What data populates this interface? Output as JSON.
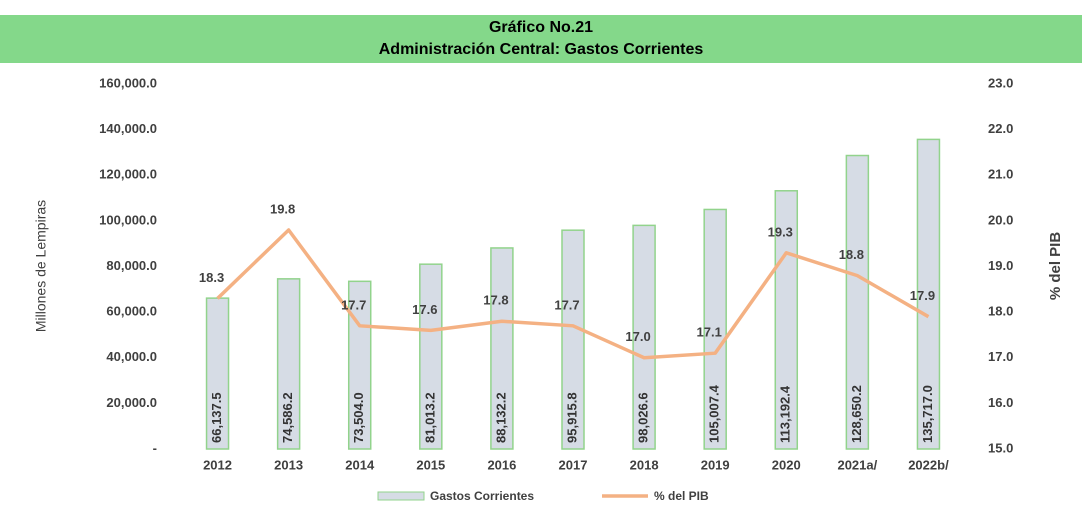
{
  "chart_data": {
    "type": "bar",
    "title": "Gráfico No.21",
    "subtitle": "Administración Central: Gastos Corrientes",
    "y_label": "Millones de Lempiras",
    "y2_label": "% del PIB",
    "categories": [
      "2012",
      "2013",
      "2014",
      "2015",
      "2016",
      "2017",
      "2018",
      "2019",
      "2020",
      "2021a/",
      "2022b/"
    ],
    "series": [
      {
        "name": "Gastos Corrientes",
        "type": "bar",
        "color": "#d6dce5",
        "values": [
          66137.5,
          74586.2,
          73504.0,
          81013.2,
          88132.2,
          95915.8,
          98026.6,
          105007.4,
          113192.4,
          128650.2,
          135717.0
        ],
        "value_labels": [
          "66,137.5",
          "74,586.2",
          "73,504.0",
          "81,013.2",
          "88,132.2",
          "95,915.8",
          "98,026.6",
          "105,007.4",
          "113,192.4",
          "128,650.2",
          "135,717.0"
        ]
      },
      {
        "name": "% del PIB",
        "type": "line",
        "axis": "y2",
        "color": "#f4b183",
        "values": [
          18.3,
          19.8,
          17.7,
          17.6,
          17.8,
          17.7,
          17.0,
          17.1,
          19.3,
          18.8,
          17.9
        ],
        "value_labels": [
          "18.3",
          "19.8",
          "17.7",
          "17.6",
          "17.8",
          "17.7",
          "17.0",
          "17.1",
          "19.3",
          "18.8",
          "17.9"
        ]
      }
    ],
    "ylim": [
      0,
      160000
    ],
    "yticks": [
      {
        "value": 0,
        "label": "-"
      },
      {
        "value": 20000,
        "label": "20,000.0"
      },
      {
        "value": 40000,
        "label": "40,000.0"
      },
      {
        "value": 60000,
        "label": "60,000.0"
      },
      {
        "value": 80000,
        "label": "80,000.0"
      },
      {
        "value": 100000,
        "label": "100,000.0"
      },
      {
        "value": 120000,
        "label": "120,000.0"
      },
      {
        "value": 140000,
        "label": "140,000.0"
      },
      {
        "value": 160000,
        "label": "160,000.0"
      }
    ],
    "y2lim": [
      15,
      23
    ],
    "y2ticks": [
      {
        "value": 15,
        "label": "15.0"
      },
      {
        "value": 16,
        "label": "16.0"
      },
      {
        "value": 17,
        "label": "17.0"
      },
      {
        "value": 18,
        "label": "18.0"
      },
      {
        "value": 19,
        "label": "19.0"
      },
      {
        "value": 20,
        "label": "20.0"
      },
      {
        "value": 21,
        "label": "21.0"
      },
      {
        "value": 22,
        "label": "22.0"
      },
      {
        "value": 23,
        "label": "23.0"
      }
    ],
    "legend": "bottom"
  }
}
